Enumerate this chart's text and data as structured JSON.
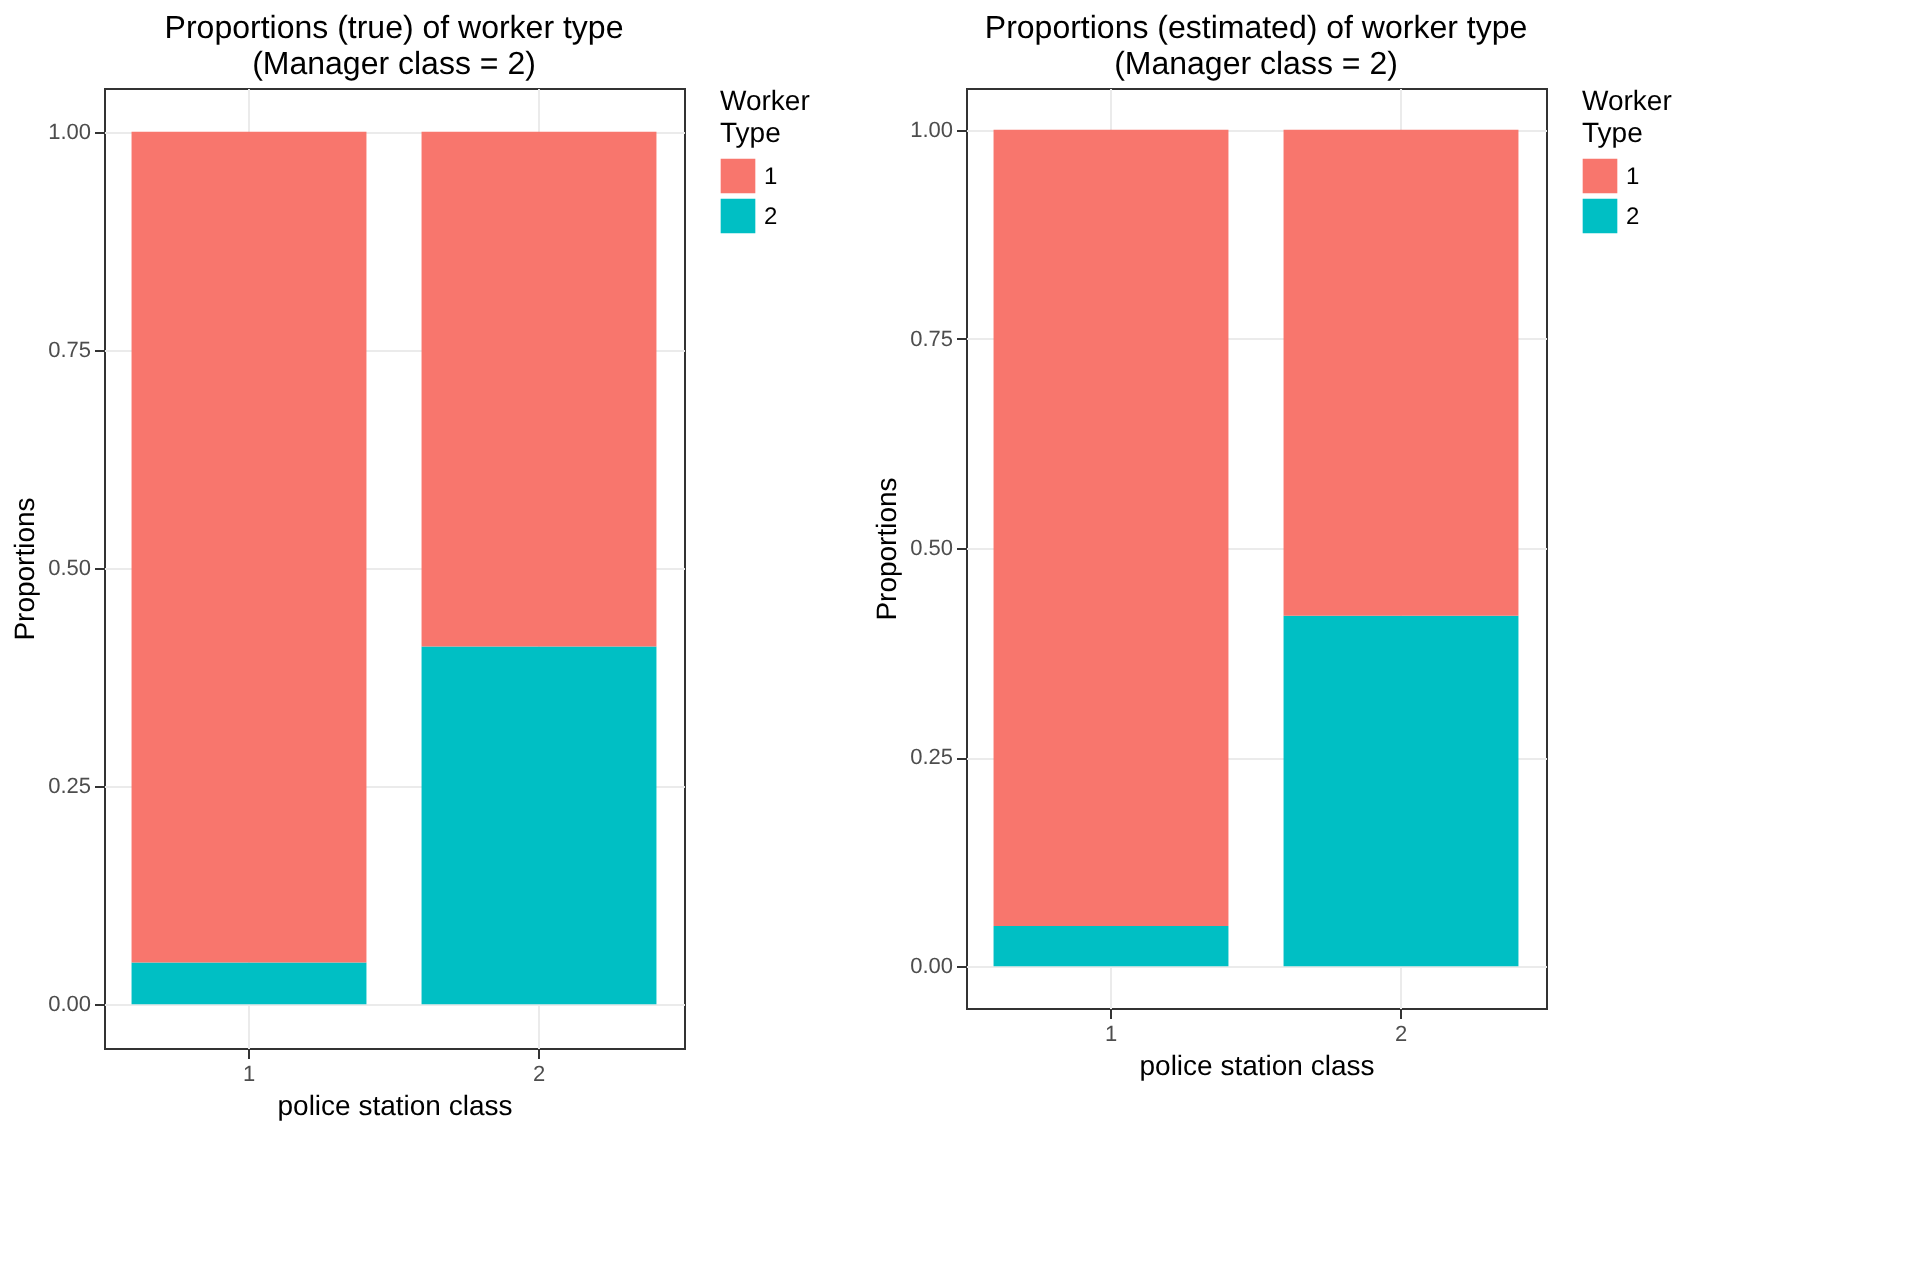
{
  "chart_data": [
    {
      "type": "bar",
      "title": "Proportions (true) of worker type\n(Manager class = 2)",
      "xlabel": "police station class",
      "ylabel": "Proportions",
      "legend_title": "Worker\nType",
      "categories": [
        "1",
        "2"
      ],
      "stacked": true,
      "series": [
        {
          "name": "2",
          "color": "#00bfc4",
          "values": [
            0.048,
            0.41
          ]
        },
        {
          "name": "1",
          "color": "#f8766d",
          "values": [
            0.952,
            0.59
          ]
        }
      ],
      "ylim": [
        -0.05,
        1.05
      ],
      "yticks": [
        {
          "value": 0,
          "label": "0.00"
        },
        {
          "value": 0.25,
          "label": "0.25"
        },
        {
          "value": 0.5,
          "label": "0.50"
        },
        {
          "value": 0.75,
          "label": "0.75"
        },
        {
          "value": 1,
          "label": "1.00"
        }
      ],
      "grid": true,
      "legend": "right"
    },
    {
      "type": "bar",
      "title": "Proportions (estimated) of worker type\n(Manager class = 2)",
      "xlabel": "police station class",
      "ylabel": "Proportions",
      "legend_title": "Worker\nType",
      "categories": [
        "1",
        "2"
      ],
      "stacked": true,
      "series": [
        {
          "name": "2",
          "color": "#00bfc4",
          "values": [
            0.048,
            0.419
          ]
        },
        {
          "name": "1",
          "color": "#f8766d",
          "values": [
            0.952,
            0.581
          ]
        }
      ],
      "ylim": [
        -0.05,
        1.05
      ],
      "yticks": [
        {
          "value": 0,
          "label": "0.00"
        },
        {
          "value": 0.25,
          "label": "0.25"
        },
        {
          "value": 0.5,
          "label": "0.50"
        },
        {
          "value": 0.75,
          "label": "0.75"
        },
        {
          "value": 1,
          "label": "1.00"
        }
      ],
      "grid": true,
      "legend": "right"
    }
  ]
}
